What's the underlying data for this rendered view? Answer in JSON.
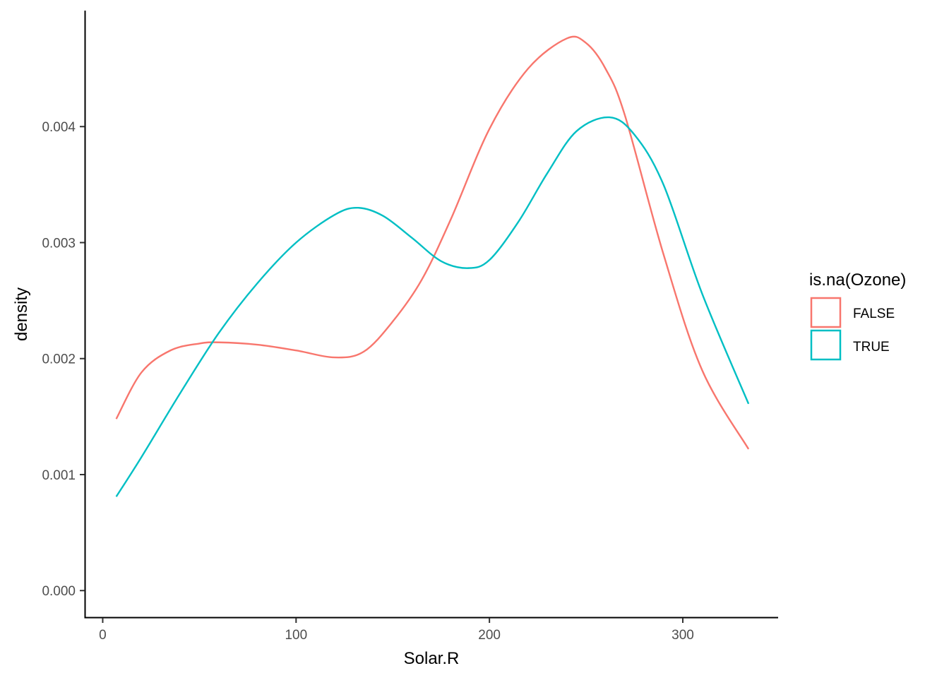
{
  "chart_data": {
    "type": "line",
    "xlabel": "Solar.R",
    "ylabel": "density",
    "xlim": [
      -9.3,
      349.3
    ],
    "ylim": [
      -0.00023,
      0.005
    ],
    "x_ticks": [
      0,
      100,
      200,
      300
    ],
    "y_ticks": [
      0.0,
      0.001,
      0.002,
      0.003,
      0.004
    ],
    "x_tick_labels": [
      "0",
      "100",
      "200",
      "300"
    ],
    "y_tick_labels": [
      "0.000",
      "0.001",
      "0.002",
      "0.003",
      "0.004"
    ],
    "grid": false,
    "legend_position": "right",
    "legend": {
      "title": "is.na(Ozone)",
      "entries": [
        "FALSE",
        "TRUE"
      ]
    },
    "series": [
      {
        "name": "FALSE",
        "color": "#F8766D",
        "x": [
          7,
          20,
          35,
          50,
          60,
          80,
          100,
          120,
          135,
          150,
          165,
          180,
          200,
          220,
          240,
          250,
          260,
          270,
          290,
          310,
          334
        ],
        "y": [
          0.00148,
          0.00188,
          0.00207,
          0.00213,
          0.00214,
          0.00212,
          0.00207,
          0.00201,
          0.00206,
          0.00232,
          0.00268,
          0.0032,
          0.00398,
          0.0045,
          0.00476,
          0.00472,
          0.0045,
          0.0041,
          0.0029,
          0.0019,
          0.00122
        ]
      },
      {
        "name": "TRUE",
        "color": "#00BFC4",
        "x": [
          7,
          20,
          40,
          60,
          80,
          100,
          120,
          132,
          145,
          160,
          175,
          189,
          200,
          215,
          230,
          245,
          262,
          275,
          290,
          310,
          334
        ],
        "y": [
          0.00081,
          0.00115,
          0.0017,
          0.00222,
          0.00265,
          0.003,
          0.00324,
          0.0033,
          0.00323,
          0.00304,
          0.00284,
          0.00278,
          0.00285,
          0.00318,
          0.0036,
          0.00396,
          0.00408,
          0.00393,
          0.0035,
          0.00256,
          0.00161
        ]
      }
    ]
  }
}
